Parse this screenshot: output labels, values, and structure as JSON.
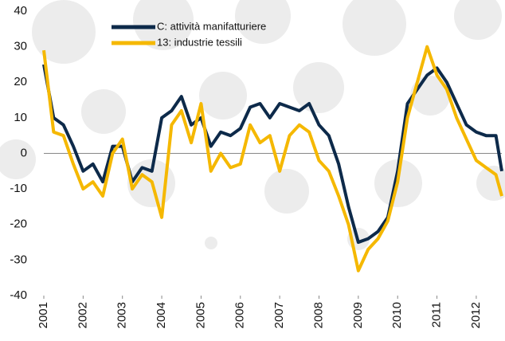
{
  "chart_data": {
    "type": "line",
    "x": [
      2001,
      2001.25,
      2001.5,
      2001.75,
      2002,
      2002.25,
      2002.5,
      2002.75,
      2003,
      2003.25,
      2003.5,
      2003.75,
      2004,
      2004.25,
      2004.5,
      2004.75,
      2005,
      2005.25,
      2005.5,
      2005.75,
      2006,
      2006.25,
      2006.5,
      2006.75,
      2007,
      2007.25,
      2007.5,
      2007.75,
      2008,
      2008.25,
      2008.5,
      2008.75,
      2009,
      2009.25,
      2009.5,
      2009.75,
      2010,
      2010.25,
      2010.5,
      2010.75,
      2011,
      2011.25,
      2011.5,
      2011.75,
      2012,
      2012.25,
      2012.5,
      2012.65
    ],
    "series": [
      {
        "name": "C: attività manifatturiere",
        "color": "#0d2a4a",
        "values": [
          25,
          10,
          8,
          2,
          -5,
          -3,
          -8,
          2,
          2,
          -8,
          -4,
          -5,
          10,
          12,
          16,
          8,
          10,
          2,
          6,
          5,
          7,
          13,
          14,
          10,
          14,
          13,
          12,
          14,
          8,
          5,
          -3,
          -15,
          -25,
          -24,
          -22,
          -18,
          -5,
          14,
          18,
          22,
          24,
          20,
          14,
          8,
          6,
          5,
          5,
          -5
        ]
      },
      {
        "name": "13: industrie tessili",
        "color": "#f5b800",
        "values": [
          29,
          6,
          5,
          -3,
          -10,
          -8,
          -12,
          0,
          4,
          -10,
          -6,
          -8,
          -18,
          8,
          12,
          3,
          14,
          -5,
          0,
          -4,
          -3,
          8,
          3,
          5,
          -5,
          5,
          8,
          6,
          -2,
          -5,
          -12,
          -20,
          -33,
          -27,
          -24,
          -19,
          -8,
          10,
          20,
          30,
          22,
          18,
          10,
          4,
          -2,
          -4,
          -6,
          -12
        ]
      }
    ],
    "xlim": [
      2001,
      2012.65
    ],
    "xticks": [
      2001,
      2002,
      2003,
      2004,
      2005,
      2006,
      2007,
      2008,
      2009,
      2010,
      2011,
      2012
    ],
    "ylim": [
      -40,
      40
    ],
    "yticks": [
      -40,
      -30,
      -20,
      -10,
      0,
      10,
      20,
      30,
      40
    ]
  }
}
